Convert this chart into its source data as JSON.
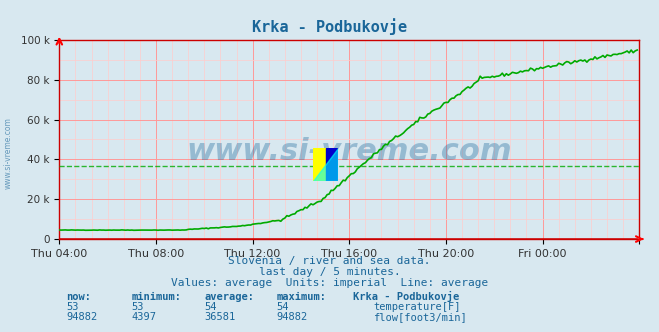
{
  "title": "Krka - Podbukovje",
  "title_color": "#1a6699",
  "bg_color": "#d8e8f0",
  "plot_bg_color": "#d8e8f0",
  "grid_color_major": "#ff9999",
  "grid_color_minor": "#ffcccc",
  "xlim_start": 0,
  "xlim_end": 288,
  "ylim": [
    0,
    100000
  ],
  "yticks": [
    0,
    20000,
    40000,
    60000,
    80000,
    100000
  ],
  "ytick_labels": [
    "0",
    "20 k",
    "40 k",
    "60 k",
    "80 k",
    "100 k"
  ],
  "xtick_positions": [
    0,
    48,
    96,
    144,
    192,
    240,
    288
  ],
  "xtick_labels": [
    "Thu 04:00",
    "Thu 08:00",
    "Thu 12:00",
    "Thu 16:00",
    "Thu 20:00",
    "Fri 00:00",
    ""
  ],
  "watermark": "www.si-vreme.com",
  "watermark_color": "#1a6699",
  "watermark_alpha": 0.35,
  "subtitle1": "Slovenia / river and sea data.",
  "subtitle2": "last day / 5 minutes.",
  "subtitle3": "Values: average  Units: imperial  Line: average",
  "subtitle_color": "#1a6699",
  "temp_color": "#cc0000",
  "flow_color": "#00aa00",
  "avg_line_color": "#00aa00",
  "avg_line_value": 36581,
  "flow_now": 94882,
  "flow_min": 4397,
  "flow_avg": 36581,
  "flow_max": 94882,
  "temp_now": 53,
  "temp_min": 53,
  "temp_avg": 54,
  "temp_max": 54,
  "table_header_color": "#1a6699",
  "table_value_color": "#1a6699"
}
